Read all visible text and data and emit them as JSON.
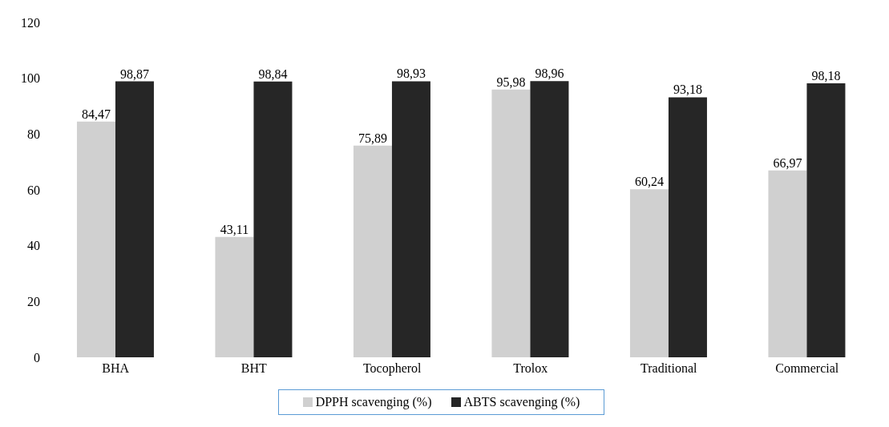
{
  "chart_data": {
    "type": "bar",
    "categories": [
      "BHA",
      "BHT",
      "Tocopherol",
      "Trolox",
      "Traditional",
      "Commercial"
    ],
    "series": [
      {
        "name": "DPPH scavenging (%)",
        "color": "#d0d0d0",
        "values": [
          84.47,
          43.11,
          75.89,
          95.98,
          60.24,
          66.97
        ],
        "value_labels": [
          "84,47",
          "43,11",
          "75,89",
          "95,98",
          "60,24",
          "66,97"
        ]
      },
      {
        "name": "ABTS scavenging (%)",
        "color": "#262626",
        "values": [
          98.87,
          98.84,
          98.93,
          98.96,
          93.18,
          98.18
        ],
        "value_labels": [
          "98,87",
          "98,84",
          "98,93",
          "98,96",
          "93,18",
          "98,18"
        ]
      }
    ],
    "ylim": [
      0,
      120
    ],
    "yticks": [
      0,
      20,
      40,
      60,
      80,
      100,
      120
    ],
    "grid": false,
    "legend": "bottom"
  }
}
